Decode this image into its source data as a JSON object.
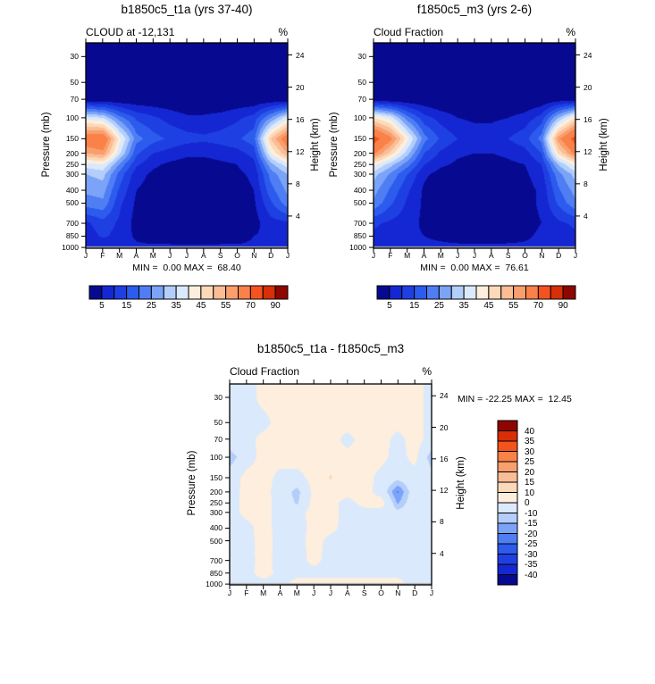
{
  "figure": {
    "background": "#ffffff"
  },
  "axis_labels": {
    "left": "Pressure (mb)",
    "right": "Height (km)"
  },
  "months": [
    "J",
    "F",
    "M",
    "A",
    "M",
    "J",
    "J",
    "A",
    "S",
    "O",
    "N",
    "D",
    "J"
  ],
  "pressure_ticks": [
    "30",
    "50",
    "70",
    "100",
    "150",
    "200",
    "250",
    "300",
    "400",
    "500",
    "700",
    "850",
    "1000"
  ],
  "height_ticks": [
    "4",
    "8",
    "12",
    "16",
    "20",
    "24"
  ],
  "palette": [
    "#070a90",
    "#1527d3",
    "#1e40e2",
    "#2c5bee",
    "#4f7ef4",
    "#7ba4f8",
    "#b3cefa",
    "#dbe9fc",
    "#fdeedd",
    "#fcd9b9",
    "#fbbd96",
    "#f99e6d",
    "#fa8148",
    "#f5531d",
    "#d92e07",
    "#8f0500"
  ],
  "cloud_cbar_labels": [
    "5",
    "15",
    "25",
    "35",
    "45",
    "55",
    "70",
    "90"
  ],
  "diff_cbar_labels": [
    "40",
    "35",
    "30",
    "25",
    "20",
    "15",
    "10",
    "0",
    "-10",
    "-15",
    "-20",
    "-25",
    "-30",
    "-35",
    "-40"
  ],
  "panels": [
    {
      "title": "b1850c5_t1a (yrs 37-40)",
      "subtitle": "CLOUD at -12,131",
      "unit": "%",
      "minmax": "MIN =  0.00 MAX =  68.40"
    },
    {
      "title": "f1850c5_m3 (yrs 2-6)",
      "subtitle": "Cloud Fraction",
      "unit": "%",
      "minmax": "MIN =  0.00 MAX =  76.61"
    },
    {
      "title": "b1850c5_t1a - f1850c5_m3",
      "subtitle": "Cloud Fraction",
      "unit": "%",
      "minmax": "MIN = -22.25 MAX =  12.45"
    }
  ],
  "chart_data": [
    {
      "type": "heatmap",
      "title": "b1850c5_t1a (yrs 37-40)",
      "variable": "CLOUD at -12,131",
      "units": "%",
      "min": 0.0,
      "max": 68.4,
      "x_months": [
        "J",
        "F",
        "M",
        "A",
        "M",
        "J",
        "J",
        "A",
        "S",
        "O",
        "N",
        "D",
        "J"
      ],
      "y_pressure_mb": [
        30,
        50,
        70,
        100,
        150,
        200,
        250,
        300,
        400,
        500,
        700,
        850,
        1000
      ],
      "y_height_km": [
        23.8,
        20.6,
        18.5,
        16.2,
        13.6,
        11.8,
        10.4,
        9.2,
        7.2,
        5.6,
        3.1,
        1.5,
        0.1
      ],
      "right_axis_km": [
        4,
        8,
        12,
        16,
        20,
        24
      ],
      "levels": [
        5,
        10,
        15,
        20,
        25,
        30,
        35,
        40,
        45,
        50,
        55,
        60,
        70,
        80,
        90
      ],
      "values": [
        [
          0,
          0,
          0,
          0,
          0,
          0,
          0,
          0,
          0,
          0,
          0,
          0,
          0
        ],
        [
          0,
          0,
          0,
          0,
          0,
          0,
          0,
          0,
          0,
          0,
          0,
          0,
          0
        ],
        [
          1,
          1,
          1,
          1,
          1,
          1,
          0,
          0,
          0,
          1,
          1,
          1,
          1
        ],
        [
          38,
          35,
          22,
          14,
          11,
          8,
          6,
          6,
          7,
          9,
          12,
          25,
          38
        ],
        [
          66,
          68,
          42,
          22,
          17,
          14,
          12,
          11,
          12,
          14,
          18,
          50,
          66
        ],
        [
          55,
          58,
          36,
          16,
          10,
          8,
          6,
          6,
          7,
          8,
          12,
          40,
          55
        ],
        [
          38,
          40,
          24,
          11,
          6,
          4,
          3,
          3,
          4,
          5,
          8,
          28,
          38
        ],
        [
          30,
          32,
          18,
          7,
          4,
          3,
          2,
          2,
          3,
          4,
          6,
          22,
          30
        ],
        [
          26,
          27,
          14,
          5,
          3,
          2,
          1,
          1,
          2,
          3,
          5,
          18,
          26
        ],
        [
          23,
          24,
          11,
          4,
          2,
          1,
          1,
          1,
          1,
          2,
          4,
          14,
          23
        ],
        [
          9,
          13,
          9,
          3,
          2,
          1,
          1,
          1,
          1,
          2,
          3,
          8,
          9
        ],
        [
          7,
          11,
          8,
          4,
          2,
          2,
          1,
          1,
          2,
          2,
          5,
          6,
          7
        ],
        [
          6,
          6,
          6,
          6,
          6,
          6,
          6,
          6,
          6,
          6,
          6,
          6,
          6
        ]
      ]
    },
    {
      "type": "heatmap",
      "title": "f1850c5_m3 (yrs 2-6)",
      "variable": "Cloud Fraction",
      "units": "%",
      "min": 0.0,
      "max": 76.61,
      "x_months": [
        "J",
        "F",
        "M",
        "A",
        "M",
        "J",
        "J",
        "A",
        "S",
        "O",
        "N",
        "D",
        "J"
      ],
      "y_pressure_mb": [
        30,
        50,
        70,
        100,
        150,
        200,
        250,
        300,
        400,
        500,
        700,
        850,
        1000
      ],
      "y_height_km": [
        23.8,
        20.6,
        18.5,
        16.2,
        13.6,
        11.8,
        10.4,
        9.2,
        7.2,
        5.6,
        3.1,
        1.5,
        0.1
      ],
      "right_axis_km": [
        4,
        8,
        12,
        16,
        20,
        24
      ],
      "levels": [
        5,
        10,
        15,
        20,
        25,
        30,
        35,
        40,
        45,
        50,
        55,
        60,
        70,
        80,
        90
      ],
      "values": [
        [
          0,
          0,
          0,
          0,
          0,
          0,
          0,
          0,
          0,
          0,
          0,
          0,
          0
        ],
        [
          0,
          0,
          0,
          0,
          0,
          0,
          0,
          0,
          0,
          0,
          0,
          0,
          0
        ],
        [
          2,
          1,
          1,
          1,
          0,
          0,
          0,
          0,
          0,
          0,
          1,
          2,
          2
        ],
        [
          45,
          38,
          22,
          12,
          8,
          5,
          4,
          4,
          5,
          7,
          12,
          30,
          45
        ],
        [
          74,
          62,
          42,
          22,
          14,
          10,
          8,
          8,
          10,
          13,
          22,
          58,
          74
        ],
        [
          62,
          48,
          32,
          15,
          9,
          6,
          5,
          5,
          6,
          8,
          15,
          46,
          62
        ],
        [
          42,
          32,
          22,
          10,
          6,
          4,
          3,
          3,
          4,
          5,
          10,
          30,
          42
        ],
        [
          32,
          24,
          15,
          6,
          3,
          2,
          2,
          2,
          3,
          4,
          8,
          23,
          32
        ],
        [
          27,
          19,
          11,
          4,
          2,
          1,
          1,
          1,
          2,
          3,
          6,
          19,
          27
        ],
        [
          24,
          16,
          9,
          4,
          2,
          1,
          1,
          1,
          1,
          3,
          6,
          16,
          24
        ],
        [
          11,
          9,
          7,
          4,
          3,
          2,
          1,
          1,
          2,
          3,
          5,
          9,
          11
        ],
        [
          9,
          7,
          6,
          5,
          4,
          3,
          2,
          2,
          3,
          4,
          6,
          7,
          9
        ],
        [
          6,
          6,
          6,
          6,
          6,
          6,
          6,
          6,
          6,
          6,
          6,
          6,
          6
        ]
      ]
    },
    {
      "type": "heatmap",
      "title": "b1850c5_t1a - f1850c5_m3",
      "variable": "Cloud Fraction",
      "units": "%",
      "min": -22.25,
      "max": 12.45,
      "x_months": [
        "J",
        "F",
        "M",
        "A",
        "M",
        "J",
        "J",
        "A",
        "S",
        "O",
        "N",
        "D",
        "J"
      ],
      "y_pressure_mb": [
        30,
        50,
        70,
        100,
        150,
        200,
        250,
        300,
        400,
        500,
        700,
        850,
        1000
      ],
      "y_height_km": [
        23.8,
        20.6,
        18.5,
        16.2,
        13.6,
        11.8,
        10.4,
        9.2,
        7.2,
        5.6,
        3.1,
        1.5,
        0.1
      ],
      "right_axis_km": [
        4,
        8,
        12,
        16,
        20,
        24
      ],
      "levels": [
        -40,
        -35,
        -30,
        -25,
        -20,
        -15,
        -10,
        0,
        10,
        15,
        20,
        25,
        30,
        35,
        40
      ],
      "values": [
        [
          -4,
          -4,
          3,
          4,
          4,
          4,
          4,
          4,
          4,
          4,
          4,
          4,
          -3
        ],
        [
          -4,
          -4,
          -3,
          4,
          4,
          4,
          4,
          4,
          4,
          4,
          3,
          4,
          -3
        ],
        [
          -4,
          -3,
          3,
          4,
          3,
          3,
          4,
          -3,
          4,
          4,
          -3,
          4,
          -3
        ],
        [
          -14,
          -4,
          3,
          4,
          4,
          3,
          4,
          3,
          4,
          3,
          -4,
          3,
          -14
        ],
        [
          -5,
          3,
          4,
          -3,
          -3,
          3,
          11,
          3,
          4,
          -3,
          -8,
          -4,
          -6
        ],
        [
          -4,
          3,
          3,
          -4,
          -13,
          3,
          4,
          3,
          4,
          -4,
          -21,
          -5,
          -5
        ],
        [
          -4,
          3,
          4,
          -4,
          -11,
          3,
          3,
          -3,
          3,
          5,
          -16,
          -4,
          -4
        ],
        [
          -4,
          3,
          4,
          -4,
          -4,
          4,
          3,
          -3,
          -3,
          -4,
          -8,
          -4,
          -4
        ],
        [
          -4,
          -3,
          4,
          -4,
          -4,
          3,
          3,
          -4,
          -4,
          -4,
          -5,
          -4,
          -4
        ],
        [
          -5,
          -4,
          5,
          -4,
          -4,
          4,
          -3,
          -4,
          -4,
          -4,
          -4,
          -4,
          -4
        ],
        [
          -4,
          -4,
          4,
          -4,
          -4,
          3,
          -4,
          -4,
          -4,
          -4,
          -4,
          -4,
          -4
        ],
        [
          -4,
          -3,
          4,
          -3,
          -3,
          -3,
          -3,
          -3,
          -3,
          -3,
          -3,
          -3,
          -4
        ],
        [
          -3,
          -3,
          -3,
          -3,
          3,
          4,
          4,
          4,
          4,
          3,
          3,
          -3,
          -3
        ]
      ]
    }
  ]
}
